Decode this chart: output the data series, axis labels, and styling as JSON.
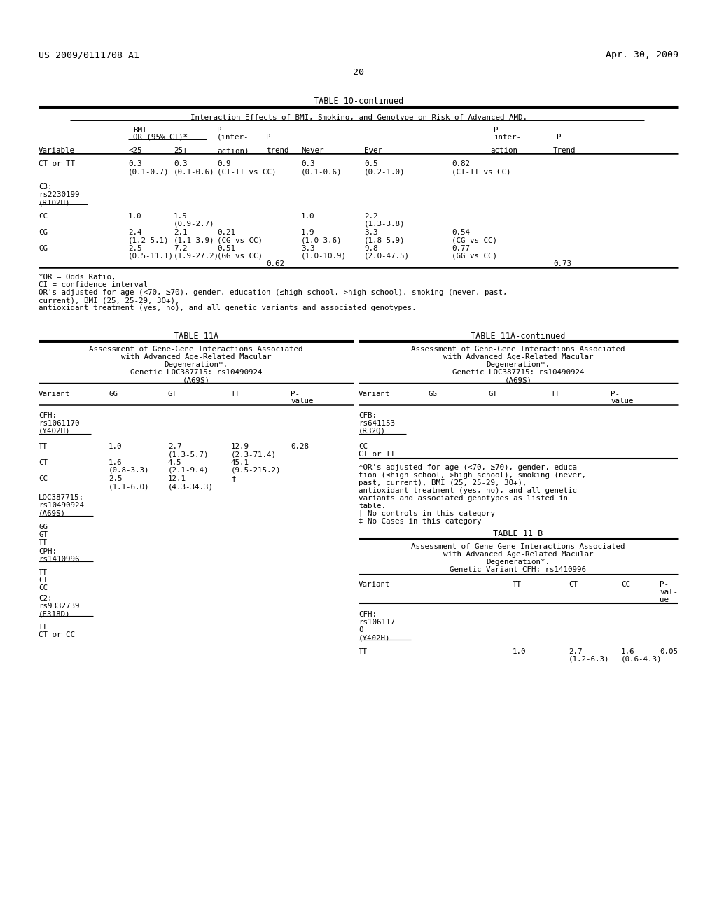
{
  "bg_color": "#ffffff",
  "header_left": "US 2009/0111708 A1",
  "header_right": "Apr. 30, 2009",
  "page_number": "20",
  "font_family": "monospace"
}
